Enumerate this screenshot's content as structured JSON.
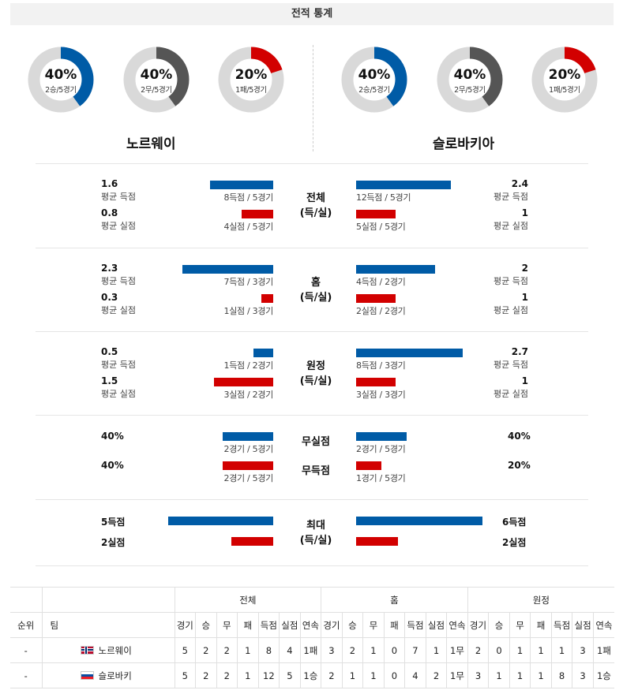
{
  "header": {
    "title": "전적 통계"
  },
  "teams": {
    "home": {
      "name": "노르웨이",
      "short": "노르웨이"
    },
    "away": {
      "name": "슬로바키아",
      "short": "슬로바키"
    }
  },
  "donuts": {
    "home": [
      {
        "pct": "40%",
        "record": "2승/5경기",
        "fraction": 0.4,
        "color": "#005ba6"
      },
      {
        "pct": "40%",
        "record": "2무/5경기",
        "fraction": 0.4,
        "color": "#555555"
      },
      {
        "pct": "20%",
        "record": "1패/5경기",
        "fraction": 0.2,
        "color": "#d20000"
      }
    ],
    "away": [
      {
        "pct": "40%",
        "record": "2승/5경기",
        "fraction": 0.4,
        "color": "#005ba6"
      },
      {
        "pct": "40%",
        "record": "2무/5경기",
        "fraction": 0.4,
        "color": "#555555"
      },
      {
        "pct": "20%",
        "record": "1패/5경기",
        "fraction": 0.2,
        "color": "#d20000"
      }
    ]
  },
  "labels": {
    "avg_scored": "평균 득점",
    "avg_conceded": "평균 실점"
  },
  "sections": {
    "total": {
      "title_line1": "전체",
      "title_line2": "(득/실)",
      "home_scored": "1.6",
      "home_scored_count": "8득점 / 5경기",
      "home_scored_bar": 0.64,
      "home_conceded": "0.8",
      "home_conceded_count": "4실점 / 5경기",
      "home_conceded_bar": 0.32,
      "away_scored": "2.4",
      "away_scored_count": "12득점 / 5경기",
      "away_scored_bar": 0.96,
      "away_conceded": "1",
      "away_conceded_count": "5실점 / 5경기",
      "away_conceded_bar": 0.4
    },
    "home": {
      "title_line1": "홈",
      "title_line2": "(득/실)",
      "home_scored": "2.3",
      "home_scored_count": "7득점 / 3경기",
      "home_scored_bar": 0.92,
      "home_conceded": "0.3",
      "home_conceded_count": "1실점 / 3경기",
      "home_conceded_bar": 0.12,
      "away_scored": "2",
      "away_scored_count": "4득점 / 2경기",
      "away_scored_bar": 0.8,
      "away_conceded": "1",
      "away_conceded_count": "2실점 / 2경기",
      "away_conceded_bar": 0.4
    },
    "away": {
      "title_line1": "원정",
      "title_line2": "(득/실)",
      "home_scored": "0.5",
      "home_scored_count": "1득점 / 2경기",
      "home_scored_bar": 0.2,
      "home_conceded": "1.5",
      "home_conceded_count": "3실점 / 2경기",
      "home_conceded_bar": 0.6,
      "away_scored": "2.7",
      "away_scored_count": "8득점 / 3경기",
      "away_scored_bar": 1.08,
      "away_conceded": "1",
      "away_conceded_count": "3실점 / 3경기",
      "away_conceded_bar": 0.4
    },
    "clean": {
      "title_clean": "무실점",
      "title_noscore": "무득점",
      "home_clean": "40%",
      "home_clean_count": "2경기 / 5경기",
      "home_clean_bar": 0.4,
      "home_noscore": "40%",
      "home_noscore_count": "2경기 / 5경기",
      "home_noscore_bar": 0.4,
      "away_clean": "40%",
      "away_clean_count": "2경기 / 5경기",
      "away_clean_bar": 0.4,
      "away_noscore": "20%",
      "away_noscore_count": "1경기 / 5경기",
      "away_noscore_bar": 0.2
    },
    "max": {
      "title_line1": "최대",
      "title_line2": "(득/실)",
      "home_scored": "5득점",
      "home_scored_bar": 5,
      "home_conceded": "2실점",
      "home_conceded_bar": 2,
      "away_scored": "6득점",
      "away_scored_bar": 6,
      "away_conceded": "2실점",
      "away_conceded_bar": 2
    }
  },
  "table": {
    "group_headers": [
      "전체",
      "홈",
      "원정"
    ],
    "col_rank": "순위",
    "col_team": "팀",
    "sub_headers": [
      "경기",
      "승",
      "무",
      "패",
      "득점",
      "실점",
      "연속"
    ],
    "rows": [
      {
        "rank": "-",
        "team": "노르웨이",
        "total": [
          "5",
          "2",
          "2",
          "1",
          "8",
          "4",
          "1패"
        ],
        "home": [
          "3",
          "2",
          "1",
          "0",
          "7",
          "1",
          "1무"
        ],
        "away": [
          "2",
          "0",
          "1",
          "1",
          "1",
          "3",
          "1패"
        ]
      },
      {
        "rank": "-",
        "team": "슬로바키",
        "total": [
          "5",
          "2",
          "2",
          "1",
          "12",
          "5",
          "1승"
        ],
        "home": [
          "2",
          "1",
          "1",
          "0",
          "4",
          "2",
          "1무"
        ],
        "away": [
          "3",
          "1",
          "1",
          "1",
          "8",
          "3",
          "1승"
        ]
      }
    ]
  },
  "colors": {
    "blue": "#005ba6",
    "red": "#d20000",
    "gray": "#555555",
    "track": "#d9d9d9"
  }
}
